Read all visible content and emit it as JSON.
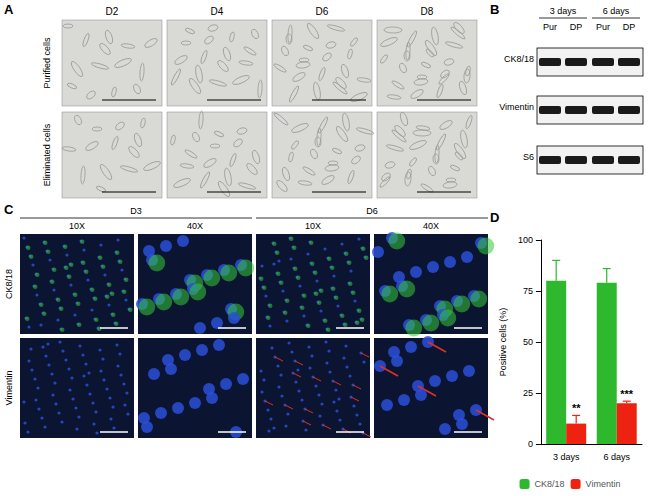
{
  "panel_a": {
    "label": "A",
    "columns": [
      "D2",
      "D4",
      "D6",
      "D8"
    ],
    "rows": [
      "Purified cells",
      "Eliminated cells"
    ]
  },
  "panel_b": {
    "label": "B",
    "groups": [
      "3 days",
      "6 days"
    ],
    "lanes": [
      "Pur",
      "DP",
      "Pur",
      "DP"
    ],
    "rows": [
      "CK8/18",
      "Vimentin",
      "S6"
    ]
  },
  "panel_c": {
    "label": "C",
    "groups": [
      "D3",
      "D6"
    ],
    "columns": [
      "10X",
      "40X",
      "10X",
      "40X"
    ],
    "rows": [
      "CK8/18",
      "Vimentin"
    ]
  },
  "chart_data": {
    "label": "D",
    "type": "bar",
    "categories": [
      "3 days",
      "6 days"
    ],
    "series": [
      {
        "name": "CK8/18",
        "color": "#2db82d",
        "values": [
          80,
          79
        ],
        "errors": [
          10,
          7
        ]
      },
      {
        "name": "Vimentin",
        "color": "#ee2211",
        "values": [
          10,
          20
        ],
        "errors": [
          4,
          1
        ],
        "annotations": [
          "**",
          "***"
        ]
      }
    ],
    "ylabel": "Positive cells (%)",
    "ylim": [
      0,
      100
    ],
    "yticks": [
      0,
      25,
      50,
      75,
      100
    ],
    "legend": "bottom"
  }
}
